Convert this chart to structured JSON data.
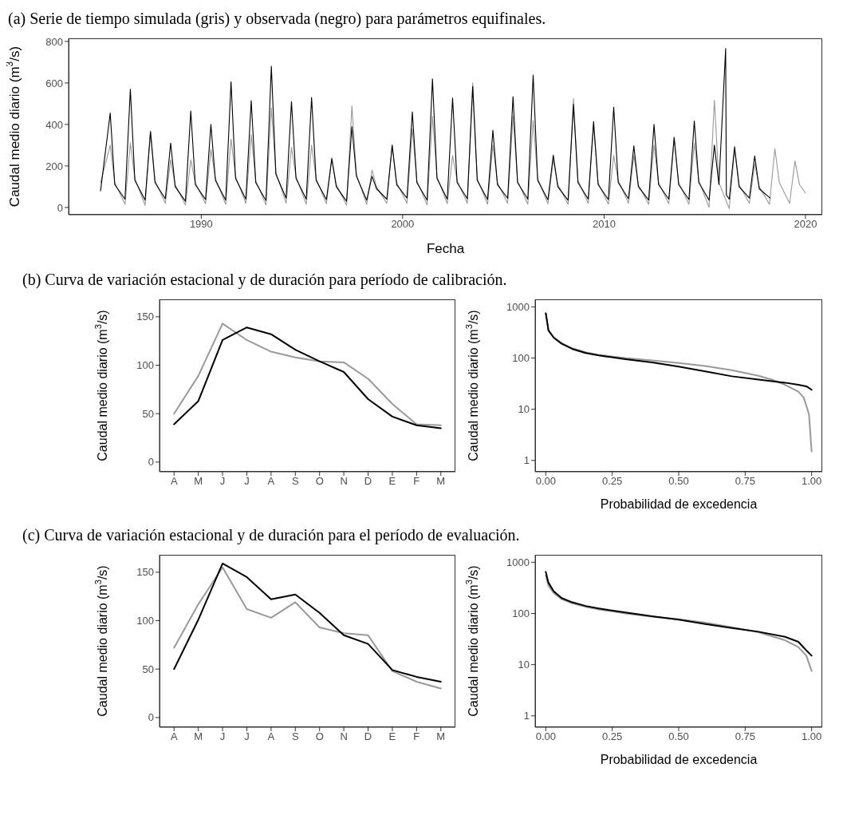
{
  "chart_data": [
    {
      "type": "line",
      "title": "(a) Serie de tiempo simulada (gris) y observada (negro) para parámetros equifinales.",
      "xlabel": "Fecha",
      "ylabel": "Caudal medio diario (m$^{3}$/s)",
      "xlim": [
        "1983-06-01",
        "2020-11-01"
      ],
      "xticks": [
        "1990",
        "2000",
        "2010",
        "2020"
      ],
      "ylim": [
        -35,
        815
      ],
      "yticks": [
        0,
        200,
        400,
        600,
        800
      ],
      "series": [
        {
          "color": "#999999",
          "x": [
            "1985-01-01",
            "1985-06-25",
            "1985-09-15",
            "1986-03-20",
            "1986-06-25",
            "1986-09-15",
            "1987-03-20",
            "1987-06-25",
            "1987-09-15",
            "1988-03-20",
            "1988-06-25",
            "1988-09-15",
            "1989-03-20",
            "1989-06-25",
            "1989-09-15",
            "1990-03-20",
            "1990-06-25",
            "1990-09-15",
            "1991-03-20",
            "1991-06-25",
            "1991-09-15",
            "1992-03-20",
            "1992-06-25",
            "1992-09-15",
            "1993-03-20",
            "1993-06-25",
            "1993-09-15",
            "1994-03-20",
            "1994-06-25",
            "1994-09-15",
            "1995-03-20",
            "1995-06-25",
            "1995-09-15",
            "1996-03-20",
            "1996-06-25",
            "1996-09-15",
            "1997-03-20",
            "1997-06-25",
            "1997-09-15",
            "1998-03-20",
            "1998-06-25",
            "1998-09-15",
            "1999-03-20",
            "1999-06-25",
            "1999-09-15",
            "2000-03-20",
            "2000-06-25",
            "2000-09-15",
            "2001-03-20",
            "2001-06-25",
            "2001-09-15",
            "2002-03-20",
            "2002-06-25",
            "2002-09-15",
            "2003-03-20",
            "2003-06-25",
            "2003-09-15",
            "2004-03-20",
            "2004-06-25",
            "2004-09-15",
            "2005-03-20",
            "2005-06-25",
            "2005-09-15",
            "2006-03-20",
            "2006-06-25",
            "2006-09-15",
            "2007-03-20",
            "2007-06-25",
            "2007-09-15",
            "2008-03-20",
            "2008-06-25",
            "2008-09-15",
            "2009-03-20",
            "2009-06-25",
            "2009-09-15",
            "2010-03-20",
            "2010-06-25",
            "2010-09-15",
            "2011-03-20",
            "2011-06-25",
            "2011-09-15",
            "2012-03-20",
            "2012-06-25",
            "2012-09-15",
            "2013-03-20",
            "2013-06-25",
            "2013-09-15",
            "2014-03-20",
            "2014-06-25",
            "2014-09-15",
            "2015-03-20",
            "2015-06-25",
            "2015-09-15",
            "2016-03-20",
            "2016-06-25",
            "2016-09-15",
            "2017-03-20",
            "2017-06-25",
            "2017-09-15",
            "2018-03-20",
            "2018-06-25",
            "2018-09-15",
            "2019-03-20",
            "2019-06-25",
            "2019-09-15",
            "2020-01-01"
          ],
          "values": [
            120,
            300,
            120,
            15,
            310,
            140,
            10,
            370,
            130,
            20,
            230,
            110,
            12,
            230,
            120,
            18,
            280,
            140,
            15,
            330,
            150,
            20,
            350,
            130,
            12,
            480,
            170,
            20,
            290,
            150,
            15,
            300,
            140,
            18,
            240,
            110,
            10,
            490,
            160,
            15,
            180,
            100,
            20,
            300,
            120,
            20,
            380,
            130,
            12,
            440,
            150,
            18,
            250,
            130,
            20,
            600,
            140,
            15,
            300,
            120,
            20,
            440,
            130,
            15,
            420,
            140,
            18,
            230,
            110,
            15,
            524,
            130,
            20,
            400,
            120,
            15,
            250,
            130,
            20,
            250,
            110,
            15,
            300,
            120,
            18,
            330,
            120,
            15,
            310,
            130,
            0,
            517,
            120,
            -5,
            280,
            110,
            20,
            210,
            100,
            15,
            283,
            120,
            20,
            224,
            110,
            70
          ]
        },
        {
          "color": "#000000",
          "x": [
            "1985-01-01",
            "1985-06-25",
            "1985-09-15",
            "1986-03-20",
            "1986-06-25",
            "1986-09-15",
            "1987-03-20",
            "1987-06-25",
            "1987-09-15",
            "1988-03-20",
            "1988-06-25",
            "1988-09-15",
            "1989-03-20",
            "1989-06-25",
            "1989-09-15",
            "1990-03-20",
            "1990-06-25",
            "1990-09-15",
            "1991-03-20",
            "1991-06-25",
            "1991-09-15",
            "1992-03-20",
            "1992-06-25",
            "1992-09-15",
            "1993-03-20",
            "1993-06-25",
            "1993-09-15",
            "1994-03-20",
            "1994-06-25",
            "1994-09-15",
            "1995-03-20",
            "1995-06-25",
            "1995-09-15",
            "1996-03-20",
            "1996-06-25",
            "1996-09-15",
            "1997-03-20",
            "1997-06-25",
            "1997-09-15",
            "1998-03-20",
            "1998-06-25",
            "1998-09-15",
            "1999-03-20",
            "1999-06-25",
            "1999-09-15",
            "2000-03-20",
            "2000-06-25",
            "2000-09-15",
            "2001-03-20",
            "2001-06-25",
            "2001-09-15",
            "2002-03-20",
            "2002-06-25",
            "2002-09-15",
            "2003-03-20",
            "2003-06-25",
            "2003-09-15",
            "2004-03-20",
            "2004-06-25",
            "2004-09-15",
            "2005-03-20",
            "2005-06-25",
            "2005-09-15",
            "2006-03-20",
            "2006-06-25",
            "2006-09-15",
            "2007-03-20",
            "2007-06-25",
            "2007-09-15",
            "2008-03-20",
            "2008-06-25",
            "2008-09-15",
            "2009-03-20",
            "2009-06-25",
            "2009-09-15",
            "2010-03-20",
            "2010-06-25",
            "2010-09-15",
            "2011-03-20",
            "2011-06-25",
            "2011-09-15",
            "2012-03-20",
            "2012-06-25",
            "2012-09-15",
            "2013-03-20",
            "2013-06-25",
            "2013-09-15",
            "2014-03-20",
            "2014-06-25",
            "2014-09-15",
            "2015-03-20",
            "2015-06-25",
            "2015-09-15",
            "2016-01-15",
            "2016-01-28",
            "2016-03-20",
            "2016-06-25",
            "2016-09-15",
            "2017-03-20",
            "2017-06-25",
            "2017-09-15",
            "2018-04-01"
          ],
          "values": [
            80,
            455,
            110,
            40,
            570,
            130,
            35,
            365,
            120,
            42,
            310,
            100,
            30,
            465,
            110,
            38,
            400,
            130,
            35,
            605,
            140,
            40,
            515,
            120,
            33,
            680,
            160,
            45,
            510,
            140,
            40,
            530,
            130,
            38,
            235,
            100,
            30,
            390,
            150,
            35,
            150,
            90,
            40,
            300,
            110,
            45,
            460,
            120,
            35,
            620,
            140,
            40,
            527,
            120,
            42,
            583,
            130,
            38,
            372,
            110,
            44,
            534,
            120,
            40,
            638,
            130,
            37,
            252,
            100,
            35,
            497,
            120,
            40,
            414,
            110,
            38,
            483,
            120,
            42,
            297,
            100,
            36,
            400,
            110,
            40,
            338,
            110,
            38,
            417,
            120,
            35,
            300,
            110,
            766,
            60,
            40,
            293,
            100,
            45,
            248,
            90,
            45
          ]
        }
      ]
    },
    {
      "type": "line",
      "title": "(b) Curva de variación estacional y de duración para período de calibración.",
      "ylabel": "Caudal medio diario (m$^{3}$/s)",
      "categories": [
        "A",
        "M",
        "J",
        "J",
        "A",
        "S",
        "O",
        "N",
        "D",
        "E",
        "F",
        "M"
      ],
      "ylim": [
        -10,
        168
      ],
      "yticks": [
        0,
        50,
        100,
        150
      ],
      "series": [
        {
          "color": "#999999",
          "values": [
            50,
            89,
            143,
            126,
            114,
            108,
            104,
            103,
            86,
            60,
            39,
            38
          ]
        },
        {
          "color": "#000000",
          "values": [
            39,
            63,
            126,
            139,
            132,
            116,
            104,
            93,
            65,
            47,
            38,
            35
          ]
        }
      ]
    },
    {
      "type": "line",
      "xlabel": "Probabilidad de excedencia",
      "ylabel": "Caudal medio diario (m$^{3}$/s)",
      "log": "y",
      "xlim": [
        -0.04,
        1.04
      ],
      "xticks": [
        {
          "value": 0,
          "label": "0.00"
        },
        {
          "value": 0.25,
          "label": "0.25"
        },
        {
          "value": 0.5,
          "label": "0.50"
        },
        {
          "value": 0.75,
          "label": "0.75"
        },
        {
          "value": 1,
          "label": "1.00"
        }
      ],
      "ylim": [
        0.6,
        1400
      ],
      "yticks": [
        1,
        10,
        100,
        1000
      ],
      "series": [
        {
          "color": "#999999",
          "x": [
            0,
            0.01,
            0.03,
            0.06,
            0.1,
            0.15,
            0.2,
            0.3,
            0.4,
            0.5,
            0.6,
            0.7,
            0.8,
            0.85,
            0.9,
            0.95,
            0.97,
            0.99,
            1
          ],
          "values": [
            750,
            340,
            250,
            195,
            155,
            130,
            115,
            100,
            90,
            80,
            70,
            58,
            45,
            38,
            30,
            22,
            17,
            8,
            1.5
          ]
        },
        {
          "color": "#000000",
          "x": [
            0,
            0.01,
            0.03,
            0.06,
            0.1,
            0.15,
            0.2,
            0.3,
            0.4,
            0.5,
            0.6,
            0.7,
            0.8,
            0.9,
            0.95,
            0.98,
            1
          ],
          "values": [
            750,
            350,
            250,
            190,
            150,
            125,
            112,
            95,
            82,
            68,
            55,
            44,
            38,
            33,
            30,
            28,
            24
          ]
        }
      ]
    },
    {
      "type": "line",
      "title": "(c) Curva de variación estacional y de duración para el período de evaluación.",
      "ylabel": "Caudal medio diario (m$^{3}$/s)",
      "categories": [
        "A",
        "M",
        "J",
        "J",
        "A",
        "S",
        "O",
        "N",
        "D",
        "E",
        "F",
        "M"
      ],
      "ylim": [
        -10,
        168
      ],
      "yticks": [
        0,
        50,
        100,
        150
      ],
      "series": [
        {
          "color": "#999999",
          "values": [
            72,
            117,
            155,
            112,
            103,
            119,
            93,
            87,
            85,
            48,
            37,
            30
          ]
        },
        {
          "color": "#000000",
          "values": [
            50,
            101,
            159,
            145,
            122,
            127,
            108,
            85,
            76,
            49,
            42,
            37
          ]
        }
      ]
    },
    {
      "type": "line",
      "xlabel": "Probabilidad de excedencia",
      "ylabel": "Caudal medio diario (m$^{3}$/s)",
      "log": "y",
      "xlim": [
        -0.04,
        1.04
      ],
      "xticks": [
        {
          "value": 0,
          "label": "0.00"
        },
        {
          "value": 0.25,
          "label": "0.25"
        },
        {
          "value": 0.5,
          "label": "0.50"
        },
        {
          "value": 0.75,
          "label": "0.75"
        },
        {
          "value": 1,
          "label": "1.00"
        }
      ],
      "ylim": [
        0.6,
        1400
      ],
      "yticks": [
        1,
        10,
        100,
        1000
      ],
      "series": [
        {
          "color": "#999999",
          "x": [
            0,
            0.01,
            0.03,
            0.06,
            0.1,
            0.15,
            0.2,
            0.3,
            0.4,
            0.5,
            0.6,
            0.7,
            0.8,
            0.9,
            0.95,
            0.98,
            1
          ],
          "values": [
            550,
            350,
            250,
            190,
            158,
            135,
            120,
            100,
            87,
            77,
            66,
            54,
            43,
            30,
            22,
            15,
            7.5
          ]
        },
        {
          "color": "#000000",
          "x": [
            0,
            0.01,
            0.03,
            0.06,
            0.1,
            0.15,
            0.2,
            0.3,
            0.4,
            0.5,
            0.6,
            0.7,
            0.8,
            0.9,
            0.95,
            0.98,
            1
          ],
          "values": [
            650,
            400,
            270,
            200,
            165,
            140,
            125,
            105,
            88,
            76,
            62,
            52,
            44,
            35,
            28,
            19,
            15
          ]
        }
      ]
    }
  ]
}
